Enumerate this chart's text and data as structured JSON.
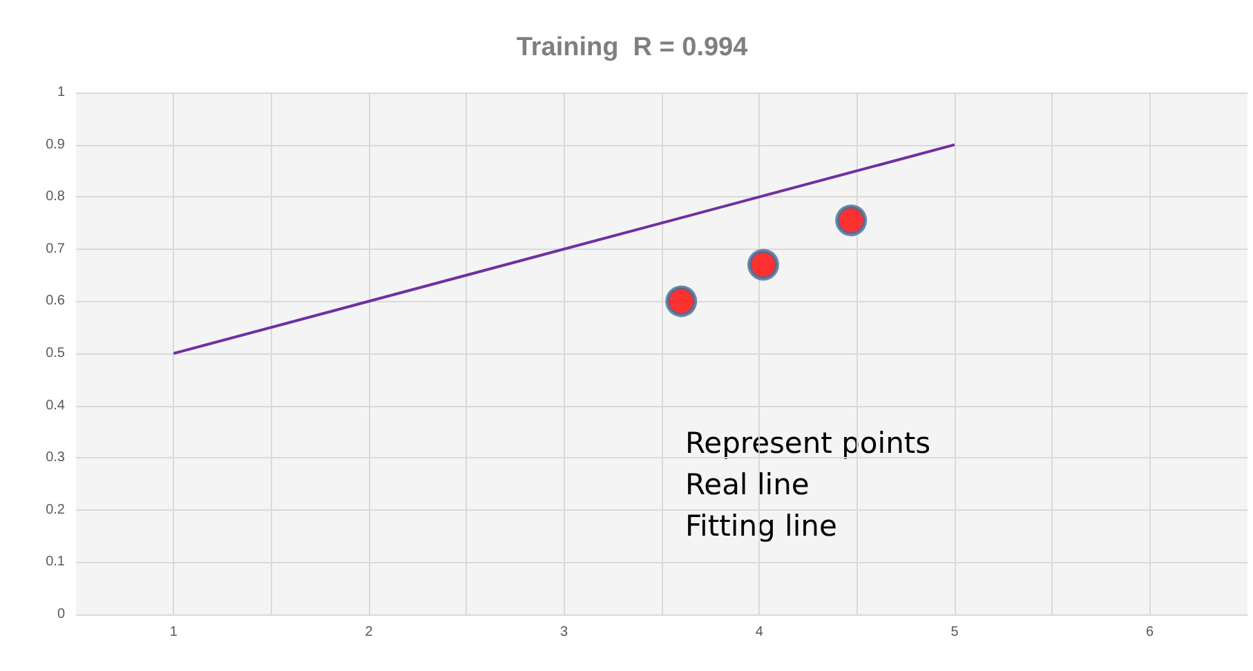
{
  "chart_data": {
    "type": "scatter",
    "title": "Training  R = 0.994",
    "xlim": [
      0.5,
      6.5
    ],
    "xticks": [
      1,
      2,
      3,
      4,
      5,
      6
    ],
    "ylim": [
      0,
      1
    ],
    "yticks": [
      0,
      0.1,
      0.2,
      0.3,
      0.4,
      0.5,
      0.6,
      0.7,
      0.8,
      0.9,
      1
    ],
    "grid": true,
    "marker": "circle",
    "series": [
      {
        "type": "line",
        "color": "#7030a0",
        "x": [
          1,
          5
        ],
        "values": [
          0.5,
          0.9
        ],
        "marker": "none"
      },
      {
        "color": "#ff0000",
        "x": [
          3.6,
          4.02,
          4.47
        ],
        "values": [
          0.6,
          0.67,
          0.755
        ]
      }
    ],
    "annotations": [
      "Represent points\nReal line\nFitting line"
    ]
  }
}
